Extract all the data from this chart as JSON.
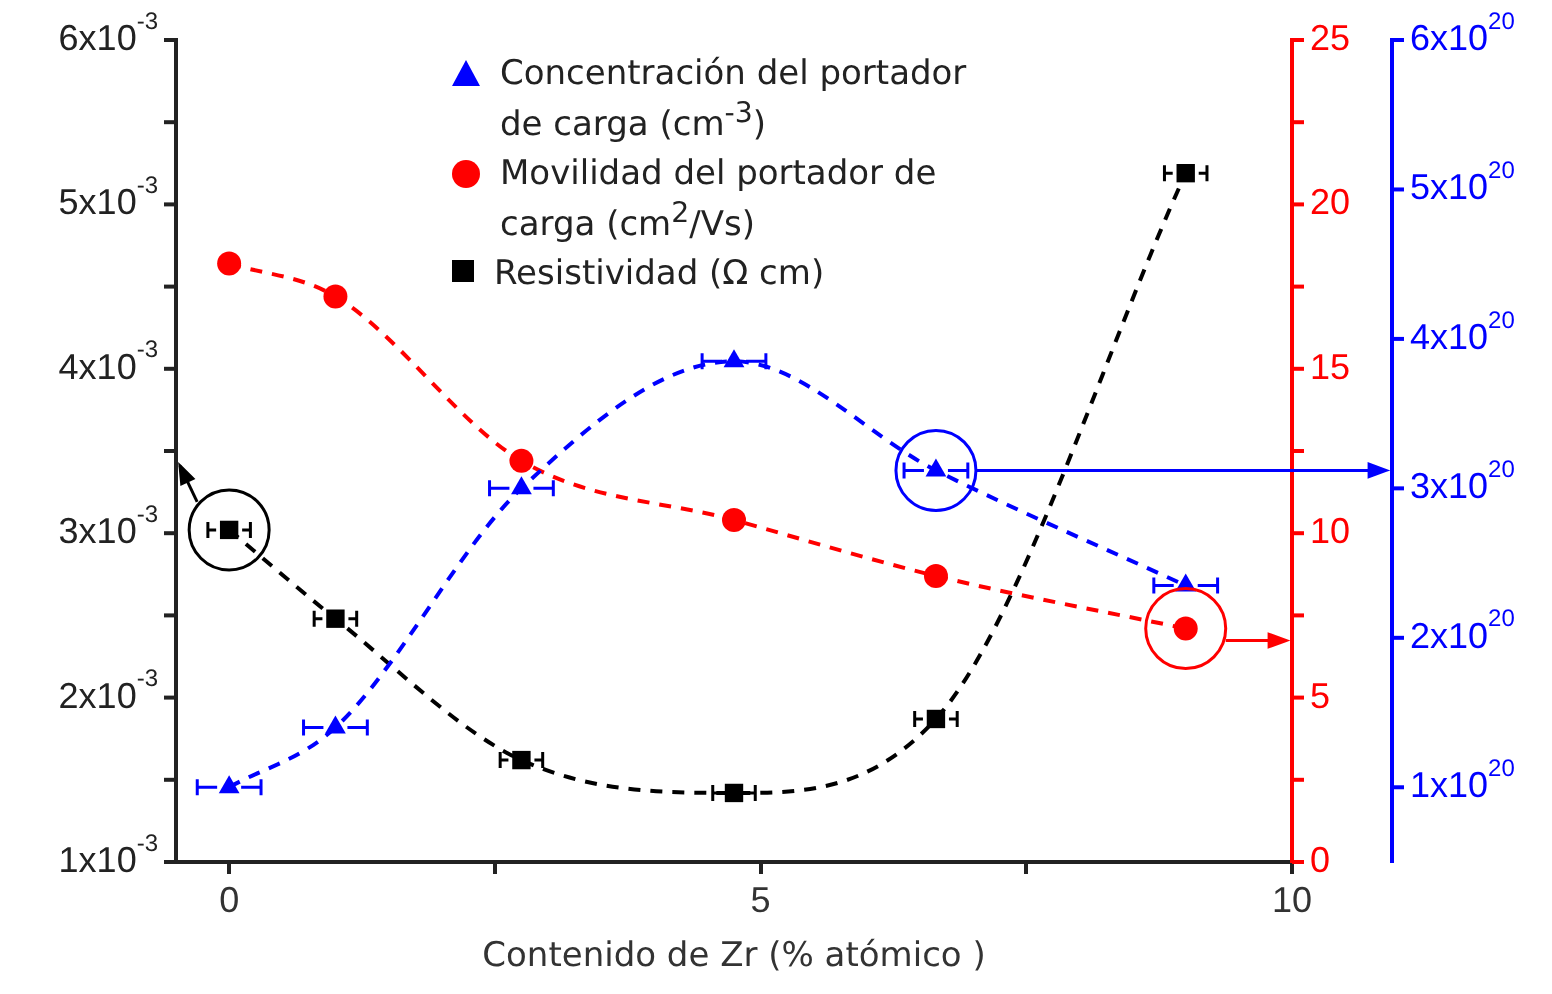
{
  "chart_data": {
    "type": "line",
    "xlabel": "Contenido de Zr (% atómico )",
    "x": [
      0,
      1,
      2.75,
      4.75,
      6.65,
      9
    ],
    "xlim": [
      -0.5,
      10
    ],
    "xticks": [
      0,
      {
        "value": 2.5,
        "label": null
      },
      5,
      {
        "value": 7.5,
        "label": null
      },
      10
    ],
    "ylim": [
      0.001,
      0.006
    ],
    "yticks": [
      {
        "value": 0.001,
        "label": "1x10$^{-3}$"
      },
      {
        "value": 0.0015,
        "label": null
      },
      {
        "value": 0.002,
        "label": "2x10$^{-3}$"
      },
      {
        "value": 0.0025,
        "label": null
      },
      {
        "value": 0.003,
        "label": "3x10$^{-3}$"
      },
      {
        "value": 0.0035,
        "label": null
      },
      {
        "value": 0.004,
        "label": "4x10$^{-3}$"
      },
      {
        "value": 0.0045,
        "label": null
      },
      {
        "value": 0.005,
        "label": "5x10$^{-3}$"
      },
      {
        "value": 0.0055,
        "label": null
      },
      {
        "value": 0.006,
        "label": "6x10$^{-3}$"
      }
    ],
    "y2lim": [
      0,
      25
    ],
    "y2ticks": [
      0,
      {
        "value": 2.5,
        "label": null
      },
      5,
      {
        "value": 7.5,
        "label": null
      },
      10,
      {
        "value": 12.5,
        "label": null
      },
      15,
      {
        "value": 17.5,
        "label": null
      },
      20,
      {
        "value": 22.5,
        "label": null
      },
      25
    ],
    "y3lim": [
      5e+19,
      6e+20
    ],
    "y3ticks": [
      {
        "value": 1e+20,
        "label": "1x10$^{20}$"
      },
      {
        "value": 2e+20,
        "label": "2x10$^{20}$"
      },
      {
        "value": 3e+20,
        "label": "3x10$^{20}$"
      },
      {
        "value": 4e+20,
        "label": "4x10$^{20}$"
      },
      {
        "value": 5e+20,
        "label": "5x10$^{20}$"
      },
      {
        "value": 6e+20,
        "label": "6x10$^{20}$"
      }
    ],
    "legend": "top",
    "line_style": "dashed",
    "series": [
      {
        "name": "Concentración del portador de carga  (cm$^{-3}$)",
        "color": "#0000ff",
        "axis": "y3",
        "marker": "triangle",
        "values": [
          1e+20,
          1.4e+20,
          3e+20,
          3.85e+20,
          3.12e+20,
          2.35e+20
        ],
        "xerrors": [
          0.3,
          0.3,
          0.3,
          0.3,
          0.3,
          0.3
        ]
      },
      {
        "name": "Movilidad del portador de carga (cm$^{2}$/Vs)",
        "color": "#ff0000",
        "axis": "y2",
        "marker": "circle",
        "values": [
          18.2,
          17.2,
          12.2,
          10.4,
          8.7,
          7.1
        ]
      },
      {
        "name": "Resistividad  (Ω cm)",
        "color": "#000000",
        "marker": "square",
        "values": [
          0.00302,
          0.00248,
          0.00162,
          0.00142,
          0.00187,
          0.00519
        ],
        "xerrors": [
          0.2,
          0.2,
          0.2,
          0.2,
          0.2,
          0.2
        ]
      }
    ]
  }
}
